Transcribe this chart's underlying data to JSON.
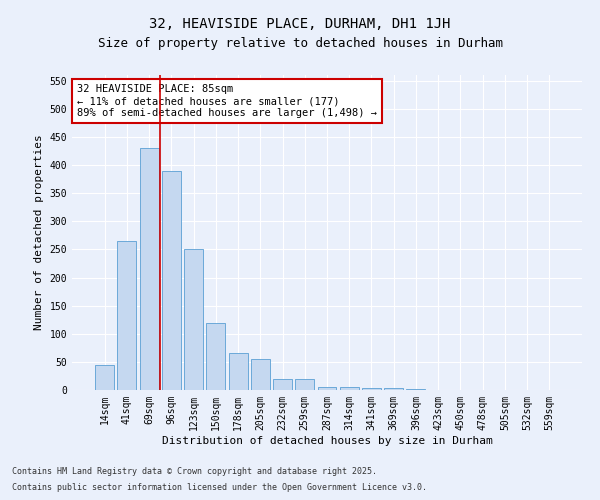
{
  "title": "32, HEAVISIDE PLACE, DURHAM, DH1 1JH",
  "subtitle": "Size of property relative to detached houses in Durham",
  "xlabel": "Distribution of detached houses by size in Durham",
  "ylabel": "Number of detached properties",
  "footnote1": "Contains HM Land Registry data © Crown copyright and database right 2025.",
  "footnote2": "Contains public sector information licensed under the Open Government Licence v3.0.",
  "annotation_line1": "32 HEAVISIDE PLACE: 85sqm",
  "annotation_line2": "← 11% of detached houses are smaller (177)",
  "annotation_line3": "89% of semi-detached houses are larger (1,498) →",
  "bar_color": "#c5d8f0",
  "bar_edge_color": "#5a9fd4",
  "vline_color": "#cc0000",
  "vline_x": 2.5,
  "categories": [
    "14sqm",
    "41sqm",
    "69sqm",
    "96sqm",
    "123sqm",
    "150sqm",
    "178sqm",
    "205sqm",
    "232sqm",
    "259sqm",
    "287sqm",
    "314sqm",
    "341sqm",
    "369sqm",
    "396sqm",
    "423sqm",
    "450sqm",
    "478sqm",
    "505sqm",
    "532sqm",
    "559sqm"
  ],
  "values": [
    45,
    265,
    430,
    390,
    250,
    120,
    65,
    55,
    20,
    20,
    5,
    5,
    3,
    3,
    1,
    0,
    0,
    0,
    0,
    0,
    0
  ],
  "ylim": [
    0,
    560
  ],
  "yticks": [
    0,
    50,
    100,
    150,
    200,
    250,
    300,
    350,
    400,
    450,
    500,
    550
  ],
  "background_color": "#eaf0fb",
  "plot_bg_color": "#eaf0fb",
  "grid_color": "#ffffff",
  "title_fontsize": 10,
  "subtitle_fontsize": 9,
  "axis_label_fontsize": 8,
  "tick_fontsize": 7,
  "annot_fontsize": 7.5
}
